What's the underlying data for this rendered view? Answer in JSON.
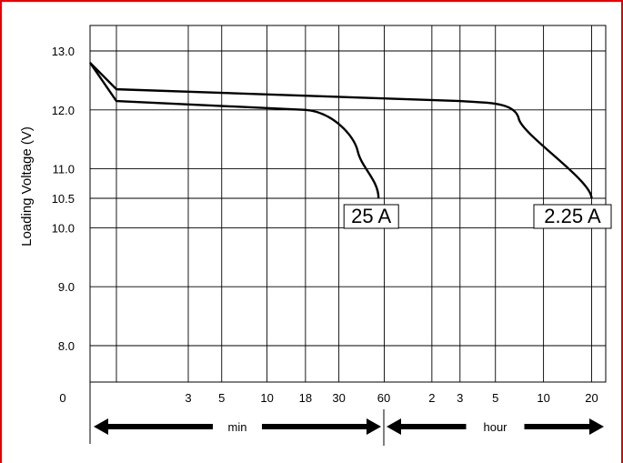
{
  "chart_data": {
    "type": "line",
    "ylabel": "Loading Voltage (V)",
    "y_ticks": [
      "13.0",
      "12.0",
      "11.0",
      "10.5",
      "10.0",
      "9.0",
      "8.0"
    ],
    "ylim": [
      7.4,
      13.5
    ],
    "x_origin_label": "0",
    "x_ticks_min": [
      "3",
      "5",
      "10",
      "18",
      "30"
    ],
    "x_tick_boundary": "60",
    "x_ticks_hour": [
      "2",
      "3",
      "5",
      "10",
      "20"
    ],
    "x_scale": "log (time, minutes then hours)",
    "x_segments": [
      {
        "label": "min",
        "from_minutes": 0,
        "to_minutes": 60
      },
      {
        "label": "hour",
        "from_minutes": 60,
        "to_minutes": 1500
      }
    ],
    "grid": true,
    "series": [
      {
        "name": "25 A",
        "x_minutes": [
          0,
          1,
          18,
          40,
          55
        ],
        "y": [
          12.8,
          12.15,
          12.0,
          11.3,
          10.5
        ]
      },
      {
        "name": "2.25 A",
        "x_minutes": [
          0,
          1,
          180,
          420,
          1200
        ],
        "y": [
          12.8,
          12.35,
          12.15,
          11.85,
          10.5
        ]
      }
    ]
  },
  "colors": {
    "frame": "#e00000",
    "line": "#000000",
    "grid": "#000000"
  }
}
